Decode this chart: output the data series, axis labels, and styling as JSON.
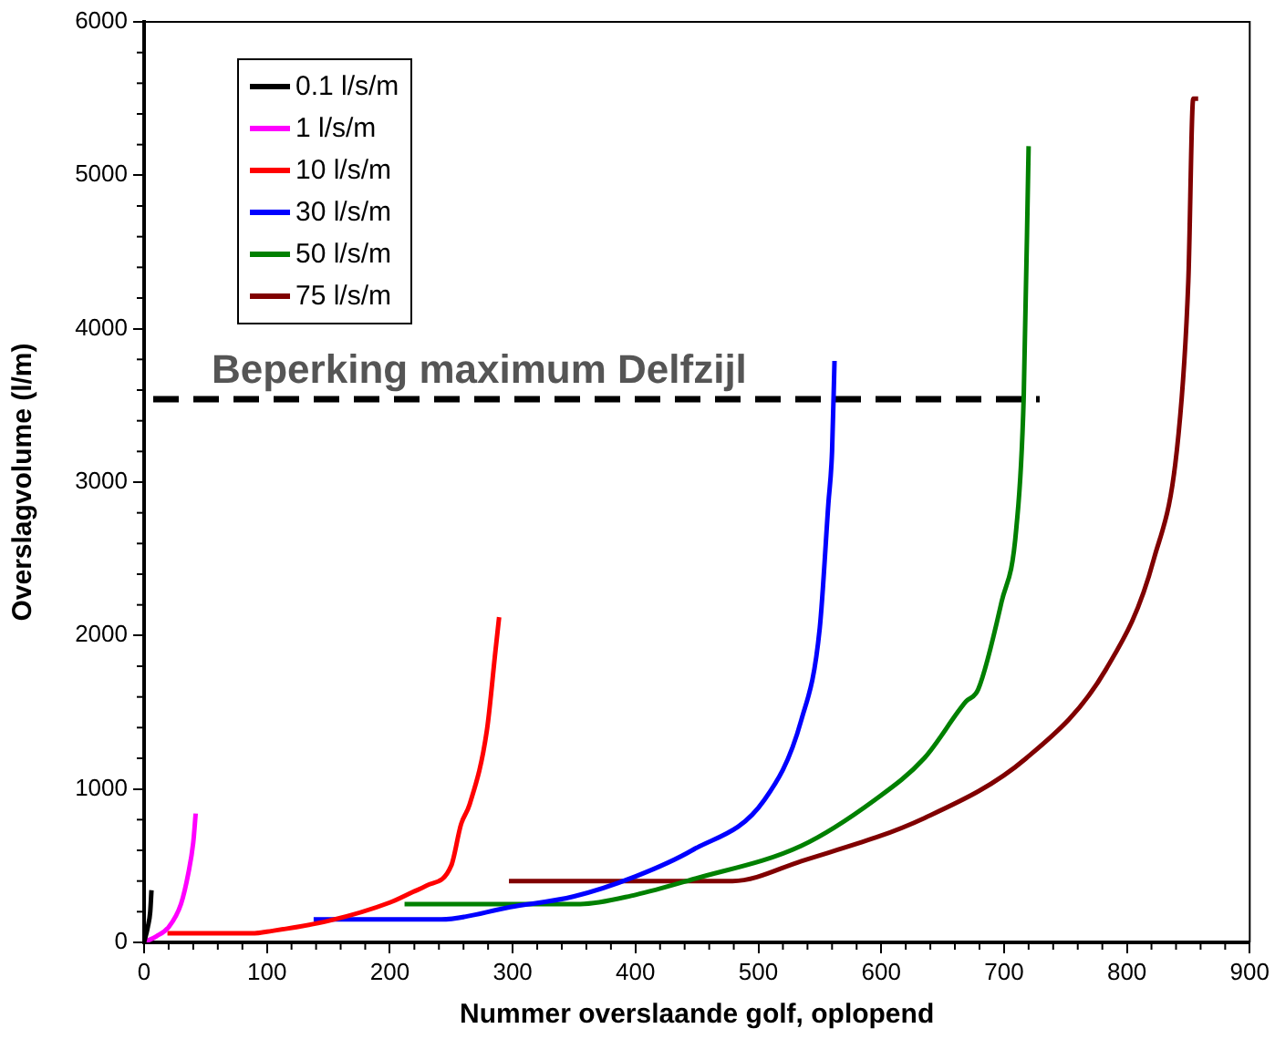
{
  "chart_data": {
    "type": "line",
    "xlabel": "Nummer overslaande golf, oplopend",
    "ylabel": "Overslagvolume (l/m)",
    "xlim": [
      0,
      900
    ],
    "xticks": [
      0,
      100,
      200,
      300,
      400,
      500,
      600,
      700,
      800,
      900
    ],
    "ylim": [
      0,
      6000
    ],
    "yticks": [
      0,
      1000,
      2000,
      3000,
      4000,
      5000,
      6000
    ],
    "grid": false,
    "legend": "top left",
    "marker": "none",
    "line_style": "solid",
    "ref_lines": [
      {
        "axis": "y",
        "value": 3540,
        "label": "Beperking maximum Delfzijl",
        "color": "#000000",
        "line_style": "dashed"
      }
    ],
    "series": [
      {
        "name": "0.1 l/s/m",
        "color": "#000000",
        "x": [
          0,
          3,
          5,
          6
        ],
        "values": [
          0,
          100,
          200,
          340
        ]
      },
      {
        "name": "1 l/s/m",
        "color": "#ff00ff",
        "x": [
          0,
          10,
          20,
          30,
          36,
          40,
          42
        ],
        "values": [
          0,
          40,
          100,
          250,
          450,
          650,
          840
        ]
      },
      {
        "name": "10 l/s/m",
        "color": "#ff0000",
        "x": [
          19,
          90,
          100,
          150,
          200,
          219,
          230,
          250,
          258,
          265,
          279,
          286,
          289
        ],
        "values": [
          60,
          60,
          70,
          140,
          260,
          330,
          370,
          500,
          770,
          900,
          1380,
          1900,
          2120
        ]
      },
      {
        "name": "30 l/s/m",
        "color": "#0000ff",
        "x": [
          138,
          242,
          298,
          350,
          400,
          446,
          505,
          535,
          550,
          557,
          560,
          562
        ],
        "values": [
          150,
          150,
          230,
          300,
          430,
          600,
          930,
          1450,
          2050,
          2860,
          3200,
          3790
        ]
      },
      {
        "name": "50 l/s/m",
        "color": "#008000",
        "x": [
          212,
          355,
          400,
          446,
          535,
          595,
          635,
          669,
          679,
          698,
          710,
          716,
          720
        ],
        "values": [
          250,
          250,
          310,
          410,
          630,
          930,
          1200,
          1570,
          1650,
          2220,
          2700,
          3550,
          5190
        ]
      },
      {
        "name": "75 l/s/m",
        "color": "#800000",
        "x": [
          297,
          479,
          535,
          635,
          718,
          783,
          822,
          842,
          850,
          854,
          858
        ],
        "values": [
          400,
          400,
          530,
          810,
          1200,
          1780,
          2500,
          3310,
          4310,
          5500,
          5500
        ]
      }
    ]
  }
}
